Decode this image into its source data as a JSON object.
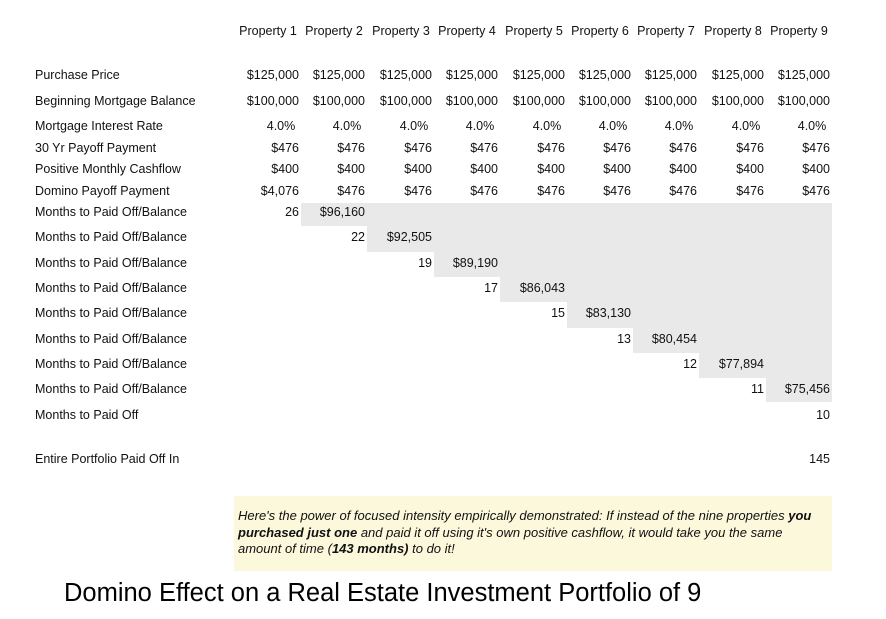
{
  "headers": [
    "Property 1",
    "Property 2",
    "Property 3",
    "Property 4",
    "Property 5",
    "Property 6",
    "Property 7",
    "Property 8",
    "Property 9"
  ],
  "rows": [
    {
      "label": "Purchase Price",
      "values": [
        "$125,000",
        "$125,000",
        "$125,000",
        "$125,000",
        "$125,000",
        "$125,000",
        "$125,000",
        "$125,000",
        "$125,000"
      ]
    },
    {
      "label": "Beginning Mortgage Balance",
      "values": [
        "$100,000",
        "$100,000",
        "$100,000",
        "$100,000",
        "$100,000",
        "$100,000",
        "$100,000",
        "$100,000",
        "$100,000"
      ]
    },
    {
      "label": "Mortgage Interest Rate",
      "values": [
        "4.0%",
        "4.0%",
        "4.0%",
        "4.0%",
        "4.0%",
        "4.0%",
        "4.0%",
        "4.0%",
        "4.0%"
      ]
    },
    {
      "label": "30 Yr Payoff Payment",
      "values": [
        "$476",
        "$476",
        "$476",
        "$476",
        "$476",
        "$476",
        "$476",
        "$476",
        "$476"
      ]
    },
    {
      "label": "Positive Monthly Cashflow",
      "values": [
        "$400",
        "$400",
        "$400",
        "$400",
        "$400",
        "$400",
        "$400",
        "$400",
        "$400"
      ]
    },
    {
      "label": "Domino Payoff Payment",
      "values": [
        "$4,076",
        "$476",
        "$476",
        "$476",
        "$476",
        "$476",
        "$476",
        "$476",
        "$476"
      ]
    }
  ],
  "stair_label": "Months to Paid Off/Balance",
  "stairs": [
    {
      "months": "26",
      "balance": "$96,160"
    },
    {
      "months": "22",
      "balance": "$92,505"
    },
    {
      "months": "19",
      "balance": "$89,190"
    },
    {
      "months": "17",
      "balance": "$86,043"
    },
    {
      "months": "15",
      "balance": "$83,130"
    },
    {
      "months": "13",
      "balance": "$80,454"
    },
    {
      "months": "12",
      "balance": "$77,894"
    },
    {
      "months": "11",
      "balance": "$75,456"
    }
  ],
  "final_row": {
    "label": "Months to Paid Off",
    "value": "10"
  },
  "portfolio_row": {
    "label": "Entire Portfolio Paid Off In",
    "value": "145"
  },
  "note": {
    "part1": "Here's the power of focused intensity empirically demonstrated: If instead of the nine properties ",
    "bold1": "you purchased just one",
    "part2": " and paid it off using it's own positive cashflow, it would take you the same amount of time (",
    "bold2": "143 months)",
    "part3": " to do it!"
  },
  "title": "Domino Effect on a Real Estate Investment Portfolio of 9"
}
